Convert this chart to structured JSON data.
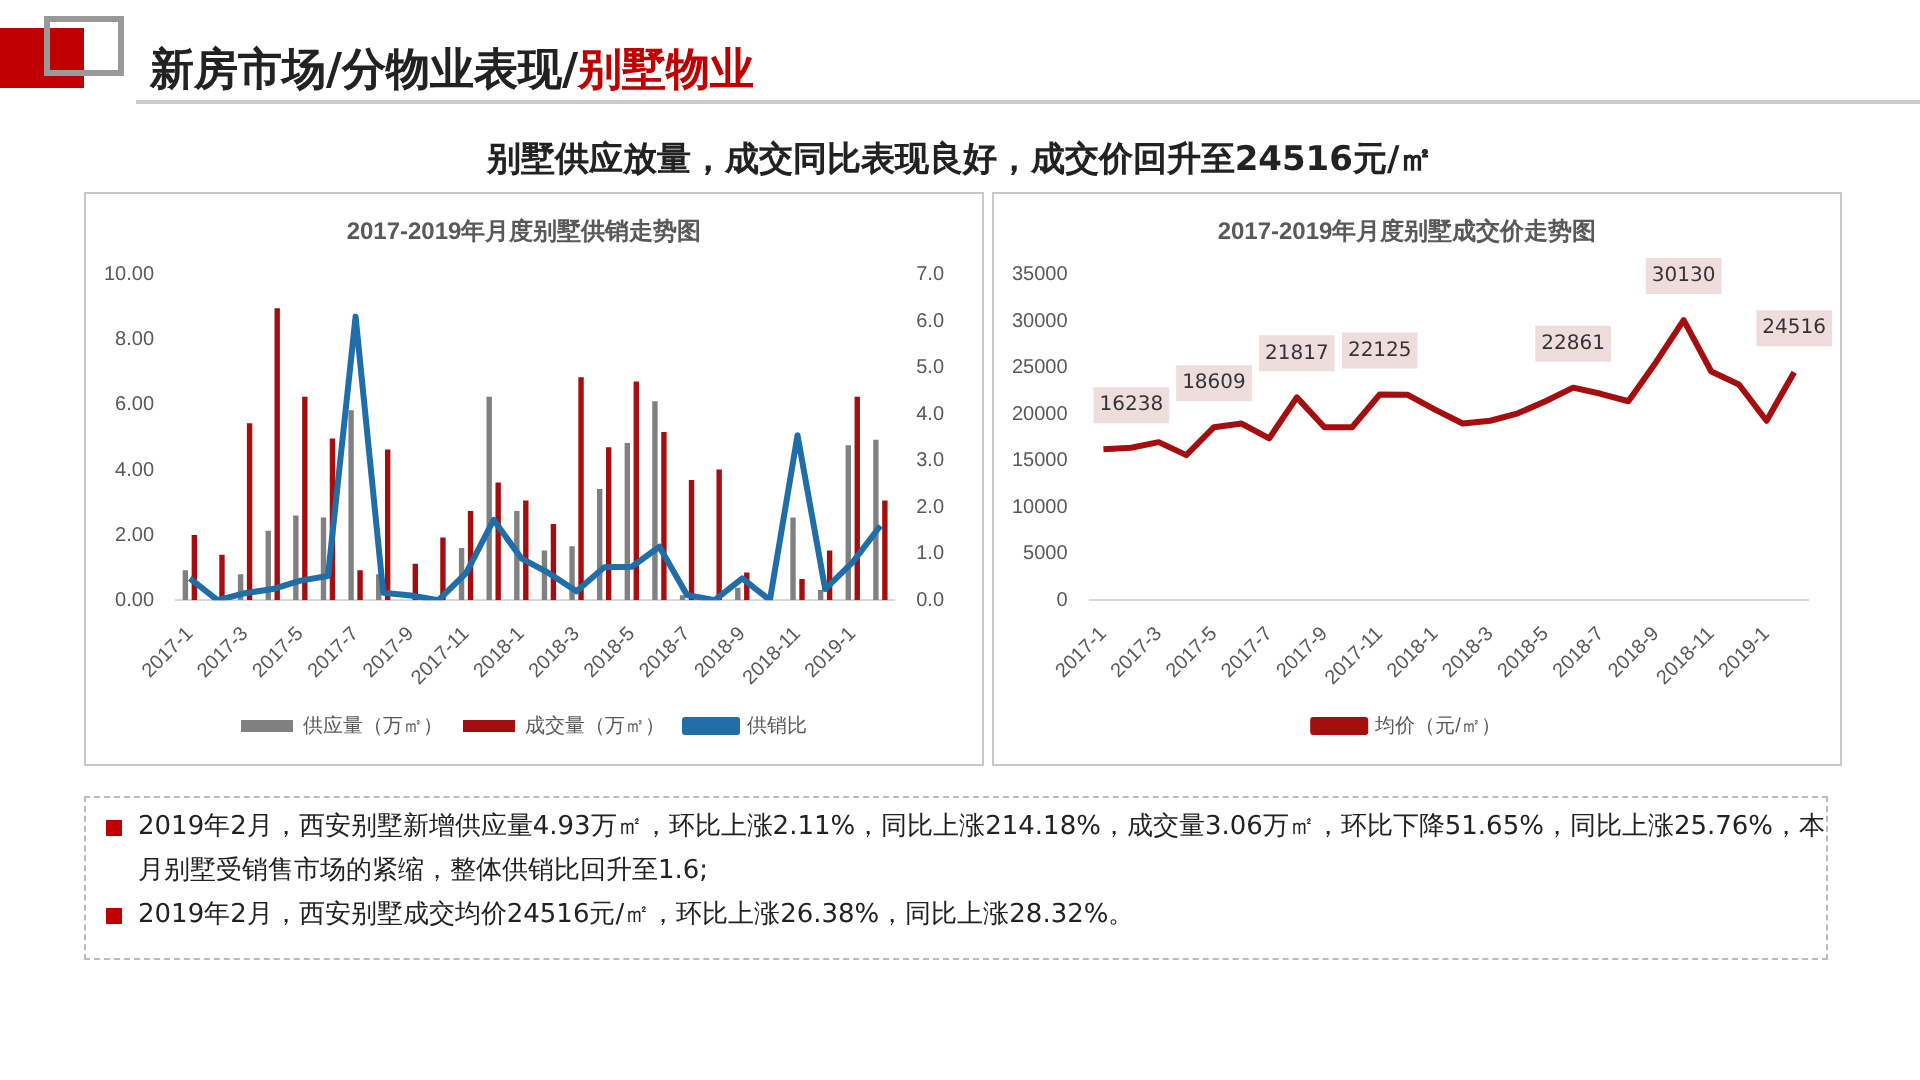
{
  "chart_data": [
    {
      "type": "bar",
      "title": "2017-2019年月度别墅供销走势图",
      "annotations": [
        "新房市场/分物业表现/别墅物业",
        "别墅供应放量，成交同比表现良好，成交价回升至24516元/㎡"
      ],
      "categories": [
        "2017-1",
        null,
        "2017-3",
        null,
        "2017-5",
        null,
        "2017-7",
        null,
        "2017-9",
        null,
        "2017-11",
        null,
        "2018-1",
        null,
        "2018-3",
        null,
        "2018-5",
        null,
        "2018-7",
        null,
        "2018-9",
        null,
        "2018-11",
        null,
        "2019-1",
        null
      ],
      "series": [
        {
          "name": "供应量（万㎡）",
          "color": "#808080",
          "values": [
            0.92,
            0,
            0.8,
            2.13,
            2.6,
            2.54,
            5.84,
            0.8,
            0,
            0,
            1.6,
            6.25,
            2.74,
            1.53,
            1.66,
            3.42,
            4.83,
            6.11,
            0.15,
            0,
            0.38,
            0,
            2.54,
            0.31,
            4.76,
            4.93
          ]
        },
        {
          "name": "成交量（万㎡）",
          "color": "#a50e0e",
          "values": [
            2.0,
            1.4,
            5.44,
            8.97,
            6.25,
            4.97,
            0.92,
            4.63,
            1.12,
            1.93,
            2.74,
            3.62,
            3.06,
            2.34,
            6.85,
            4.7,
            6.72,
            5.17,
            3.69,
            4.02,
            0.85,
            0,
            0.65,
            1.53,
            6.25,
            3.06
          ]
        },
        {
          "name": "供销比",
          "color": "#1f6ea8",
          "type": "line",
          "axis": "y2",
          "values": [
            0.47,
            0,
            0.15,
            0.24,
            0.42,
            0.52,
            6.1,
            0.16,
            0.1,
            0,
            0.58,
            1.73,
            0.9,
            0.58,
            0.19,
            0.71,
            0.72,
            1.15,
            0.11,
            0,
            0.47,
            0,
            3.55,
            0.24,
            0.82,
            1.6
          ]
        }
      ],
      "ylim": [
        0,
        10
      ],
      "yticks": [
        {
          "value": 0,
          "label": "0.00"
        },
        {
          "value": 2,
          "label": "2.00"
        },
        {
          "value": 4,
          "label": "4.00"
        },
        {
          "value": 6,
          "label": "6.00"
        },
        {
          "value": 8,
          "label": "8.00"
        },
        {
          "value": 10,
          "label": "10.00"
        }
      ],
      "y2lim": [
        0,
        7
      ],
      "y2ticks": [
        {
          "value": 0,
          "label": "0.0"
        },
        {
          "value": 1,
          "label": "1.0"
        },
        {
          "value": 2,
          "label": "2.0"
        },
        {
          "value": 3,
          "label": "3.0"
        },
        {
          "value": 4,
          "label": "4.0"
        },
        {
          "value": 5,
          "label": "5.0"
        },
        {
          "value": 6,
          "label": "6.0"
        },
        {
          "value": 7,
          "label": "7.0"
        }
      ],
      "legend": "bottom",
      "grid": false,
      "marker": "none"
    },
    {
      "type": "line",
      "title": "2017-2019年月度别墅成交价走势图",
      "annotations": [
        "2019年2月，西安别墅新增供应量4.93万㎡，环比上涨2.11%，同比上涨214.18%，成交量3.06万㎡，环比下降51.65%，同比上涨25.76%，本月别墅受销售市场的紧缩，整体供销比回升至1.6;",
        "2019年2月，西安别墅成交均价24516元/㎡，环比上涨26.38%，同比上涨28.32%。"
      ],
      "categories": [
        "2017-1",
        null,
        "2017-3",
        null,
        "2017-5",
        null,
        "2017-7",
        null,
        "2017-9",
        null,
        "2017-11",
        null,
        "2018-1",
        null,
        "2018-3",
        null,
        "2018-5",
        null,
        "2018-7",
        null,
        "2018-9",
        null,
        "2018-11",
        null,
        "2019-1",
        null
      ],
      "series": [
        {
          "name": "均价（元/㎡）",
          "color": "#a50e0e",
          "values": [
            16238,
            16400,
            17000,
            15600,
            18609,
            19000,
            17400,
            21817,
            18600,
            18600,
            22125,
            22100,
            20500,
            19000,
            19300,
            20100,
            21400,
            22861,
            22200,
            21400,
            25600,
            30130,
            24600,
            23200,
            19300,
            24516
          ],
          "value_labels": [
            "16238",
            null,
            null,
            null,
            "18609",
            null,
            null,
            "21817",
            null,
            null,
            "22125",
            null,
            null,
            null,
            null,
            null,
            null,
            "22861",
            null,
            null,
            null,
            "30130",
            null,
            null,
            null,
            "24516"
          ]
        }
      ],
      "ylim": [
        0,
        35000
      ],
      "yticks": [
        0,
        5000,
        10000,
        15000,
        20000,
        25000,
        30000,
        35000
      ],
      "legend": "bottom",
      "grid": false,
      "marker": "none"
    }
  ]
}
